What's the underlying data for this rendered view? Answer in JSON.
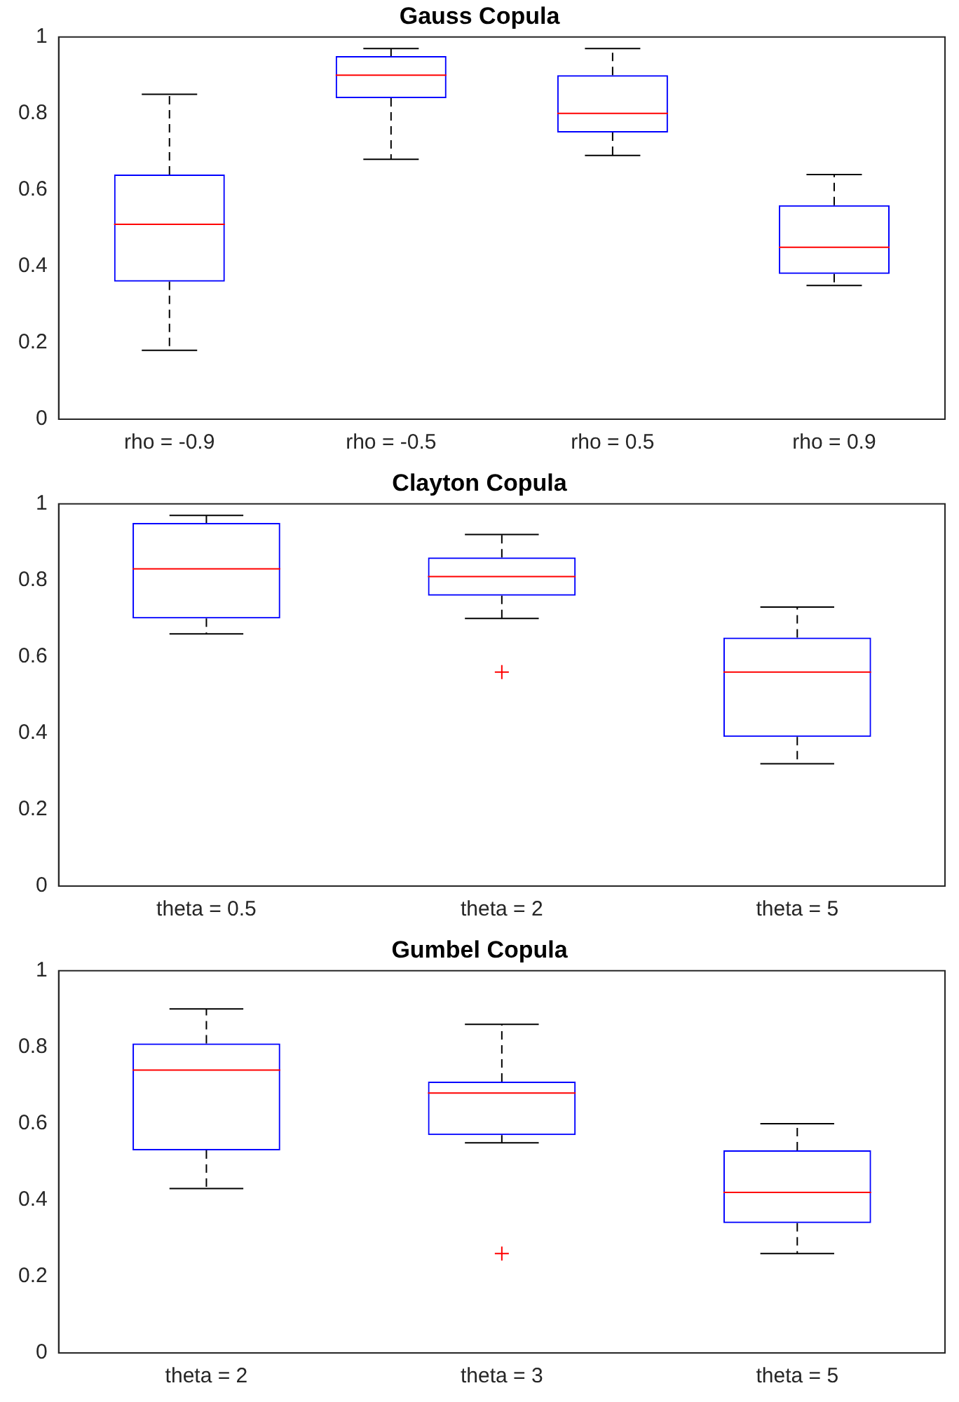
{
  "chart_data": [
    {
      "type": "box",
      "title": "Gauss Copula",
      "categories": [
        "rho = -0.9",
        "rho = -0.5",
        "rho = 0.5",
        "rho = 0.9"
      ],
      "ylim": [
        0,
        1
      ],
      "yticks": [
        0,
        0.2,
        0.4,
        0.6,
        0.8,
        1
      ],
      "grid": false,
      "legend": false,
      "series": [
        {
          "color": "#0000ff",
          "boxes": [
            {
              "low": 0.18,
              "q1": 0.36,
              "median": 0.51,
              "q3": 0.64,
              "high": 0.85
            },
            {
              "low": 0.68,
              "q1": 0.84,
              "median": 0.9,
              "q3": 0.95,
              "high": 0.97
            },
            {
              "low": 0.69,
              "q1": 0.75,
              "median": 0.8,
              "q3": 0.9,
              "high": 0.97
            },
            {
              "low": 0.35,
              "q1": 0.38,
              "median": 0.45,
              "q3": 0.56,
              "high": 0.64
            }
          ]
        }
      ]
    },
    {
      "type": "box",
      "title": "Clayton Copula",
      "categories": [
        "theta = 0.5",
        "theta = 2",
        "theta = 5"
      ],
      "ylim": [
        0,
        1
      ],
      "yticks": [
        0,
        0.2,
        0.4,
        0.6,
        0.8,
        1
      ],
      "grid": false,
      "legend": false,
      "series": [
        {
          "color": "#0000ff",
          "boxes": [
            {
              "low": 0.66,
              "q1": 0.7,
              "median": 0.83,
              "q3": 0.95,
              "high": 0.97
            },
            {
              "low": 0.7,
              "q1": 0.76,
              "median": 0.81,
              "q3": 0.86,
              "high": 0.92,
              "outliers": [
                0.56
              ]
            },
            {
              "low": 0.32,
              "q1": 0.39,
              "median": 0.56,
              "q3": 0.65,
              "high": 0.73
            }
          ]
        }
      ]
    },
    {
      "type": "box",
      "title": "Gumbel Copula",
      "categories": [
        "theta = 2",
        "theta = 3",
        "theta = 5"
      ],
      "ylim": [
        0,
        1
      ],
      "yticks": [
        0,
        0.2,
        0.4,
        0.6,
        0.8,
        1
      ],
      "grid": false,
      "legend": false,
      "series": [
        {
          "color": "#0000ff",
          "boxes": [
            {
              "low": 0.43,
              "q1": 0.53,
              "median": 0.74,
              "q3": 0.81,
              "high": 0.9
            },
            {
              "low": 0.55,
              "q1": 0.57,
              "median": 0.68,
              "q3": 0.71,
              "high": 0.86,
              "outliers": [
                0.26
              ]
            },
            {
              "low": 0.26,
              "q1": 0.34,
              "median": 0.42,
              "q3": 0.53,
              "high": 0.6
            }
          ]
        }
      ]
    }
  ]
}
